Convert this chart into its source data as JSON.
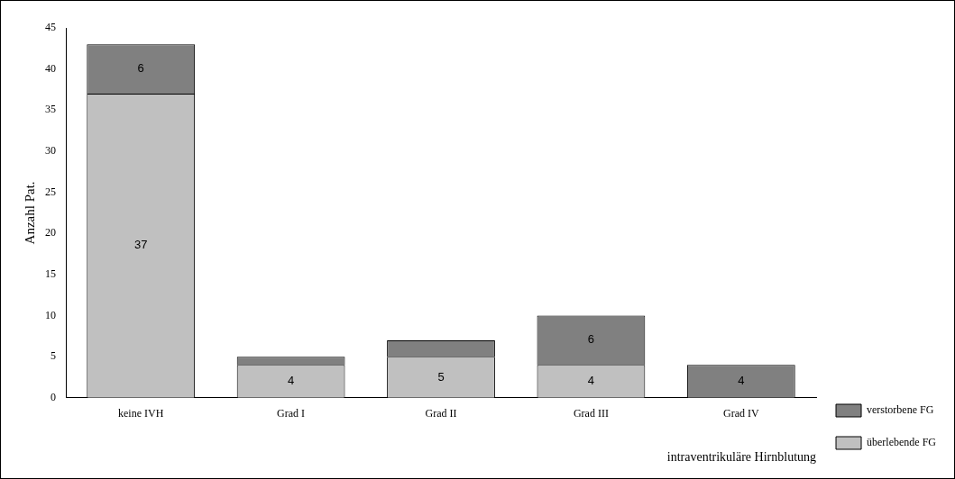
{
  "chart_data": {
    "type": "bar",
    "stacked": true,
    "xlabel": "intraventrikuläre Hirnblutung",
    "ylabel": "Anzahl Pat.",
    "categories": [
      "keine IVH",
      "Grad I",
      "Grad II",
      "Grad III",
      "Grad IV"
    ],
    "series": [
      {
        "name": "überlebende FG",
        "color": "#c0c0c0",
        "values": [
          37,
          4,
          5,
          4,
          0
        ],
        "value_labels": [
          "37",
          "4",
          "5",
          "4",
          null
        ]
      },
      {
        "name": "verstorbene FG",
        "color": "#808080",
        "values": [
          6,
          1,
          2,
          6,
          4
        ],
        "value_labels": [
          "6",
          null,
          null,
          "6",
          "4"
        ]
      }
    ],
    "ylim": [
      0,
      45
    ],
    "yticks": [
      0,
      5,
      10,
      15,
      20,
      25,
      30,
      35,
      40,
      45
    ],
    "grid": false,
    "legend": "right"
  }
}
